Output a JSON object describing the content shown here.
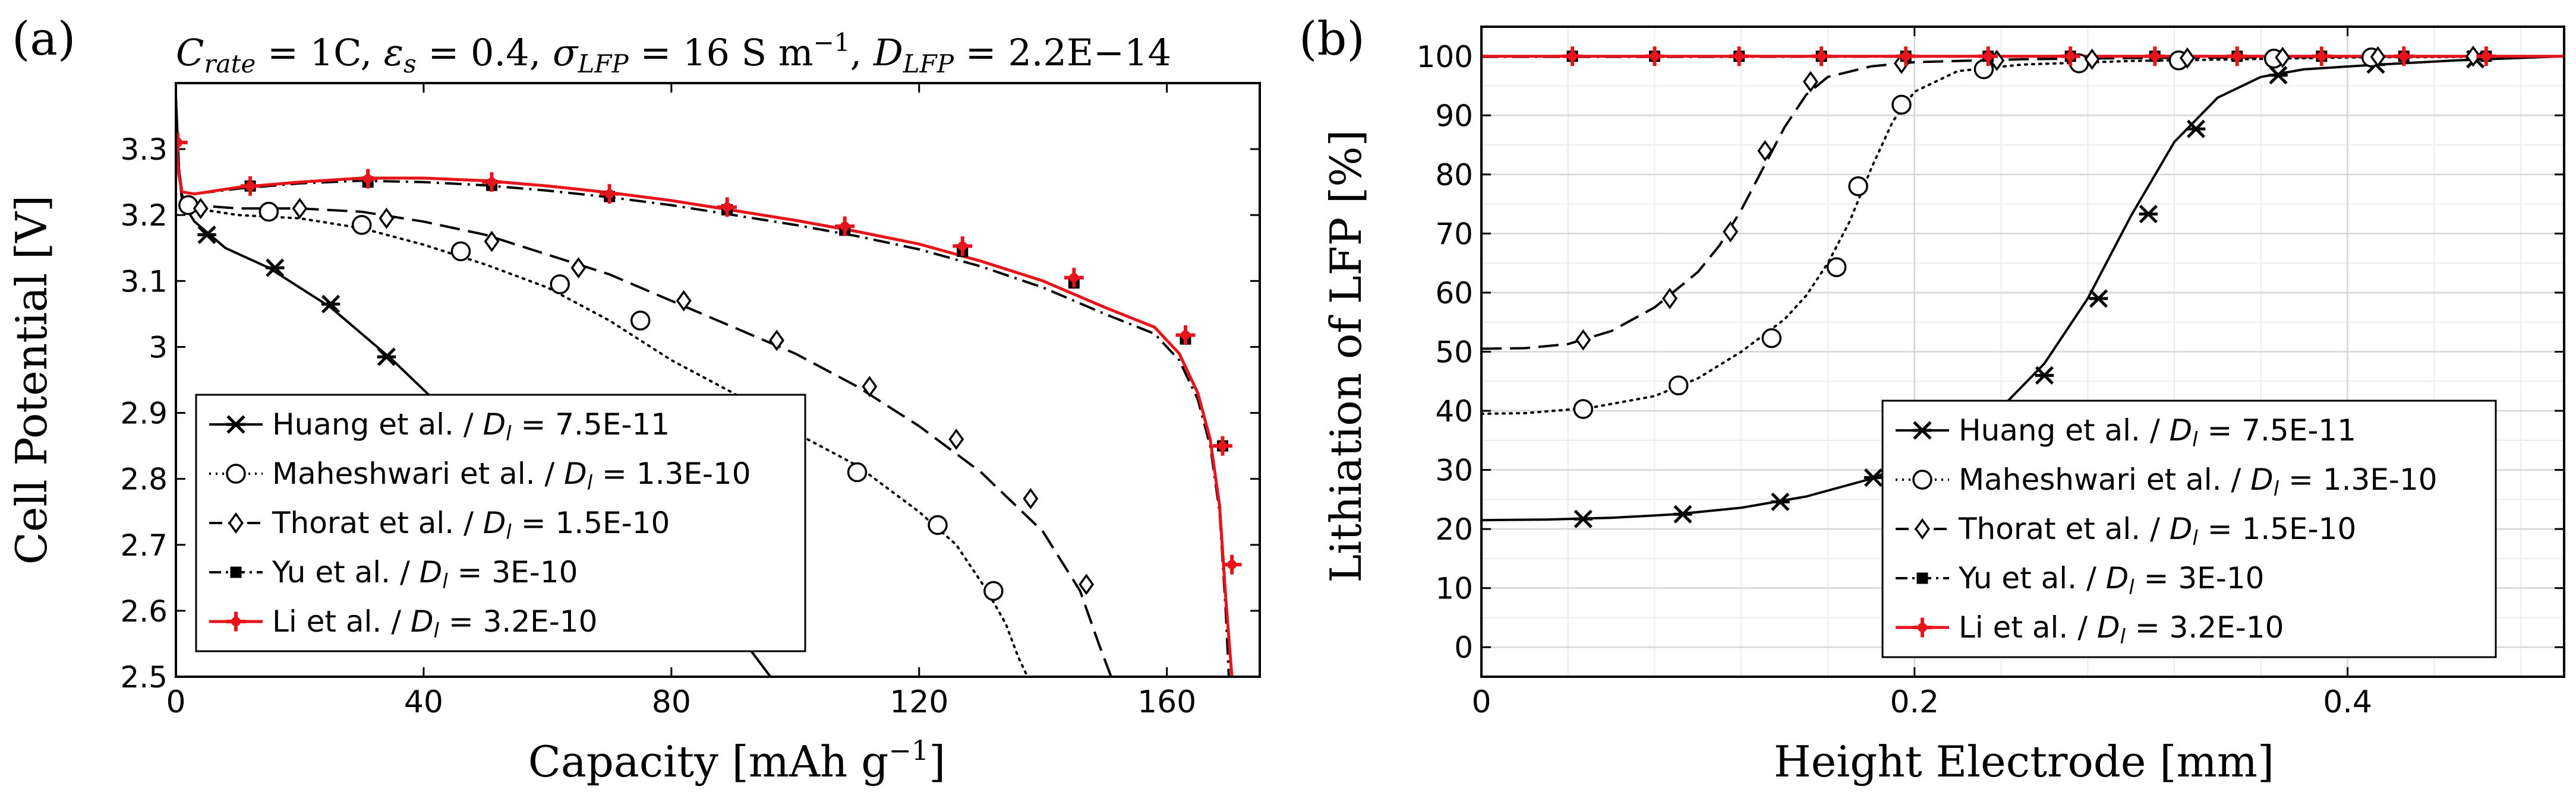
{
  "chart_data": [
    {
      "type": "line",
      "panel_label": "(a)",
      "title_parts": [
        "C",
        "rate",
        " = 1C, ",
        "ε",
        "s",
        " = 0.4, ",
        "σ",
        "LFP",
        " = 16 S m",
        "−1",
        ", ",
        "D",
        "LFP",
        " = 2.2E−14"
      ],
      "xlabel": "Capacity [mAh g",
      "xlabel_sup": "−1",
      "xlabel_end": "]",
      "ylabel": "Cell Potential [V]",
      "xlim": [
        0,
        175
      ],
      "ylim": [
        2.5,
        3.4
      ],
      "xticks": [
        0,
        40,
        80,
        120,
        160
      ],
      "xtick_labels": [
        "0",
        "40",
        "80",
        "120",
        "160"
      ],
      "yticks": [
        2.5,
        2.6,
        2.7,
        2.8,
        2.9,
        3.0,
        3.1,
        3.2,
        3.3
      ],
      "ytick_labels": [
        "2.5",
        "2.6",
        "2.7",
        "2.8",
        "2.9",
        "3",
        "3.1",
        "3.2",
        "3.3"
      ],
      "grid": false,
      "legend_position": "bottom-left",
      "series": [
        {
          "name": "Huang et al. / ",
          "dsym": "D",
          "dsub": "l",
          "dval": " = 7.5E-11",
          "color": "#000000",
          "dash": "solid",
          "marker": "asterisk",
          "x": [
            0,
            0.5,
            1,
            3,
            8,
            15,
            25,
            35,
            45,
            55,
            65,
            75,
            85,
            92,
            96
          ],
          "y": [
            3.38,
            3.27,
            3.22,
            3.19,
            3.15,
            3.12,
            3.06,
            2.98,
            2.89,
            2.81,
            2.74,
            2.68,
            2.61,
            2.55,
            2.5
          ],
          "mx": [
            5,
            16,
            25,
            34
          ],
          "my": [
            3.17,
            3.12,
            3.065,
            2.985
          ]
        },
        {
          "name": "Maheshwari et al. / ",
          "dsym": "D",
          "dsub": "l",
          "dval": " = 1.3E-10",
          "color": "#000000",
          "dash": "dot",
          "marker": "circle",
          "x": [
            0,
            0.5,
            1,
            3,
            10,
            20,
            30,
            40,
            50,
            60,
            70,
            80,
            90,
            100,
            110,
            120,
            126,
            131,
            134,
            136,
            137.5
          ],
          "y": [
            3.35,
            3.26,
            3.23,
            3.21,
            3.2,
            3.195,
            3.18,
            3.155,
            3.125,
            3.09,
            3.04,
            2.98,
            2.93,
            2.87,
            2.82,
            2.75,
            2.7,
            2.63,
            2.58,
            2.53,
            2.5
          ],
          "mx": [
            2,
            15,
            30,
            46,
            62,
            75,
            110,
            123,
            132
          ],
          "my": [
            3.215,
            3.205,
            3.185,
            3.145,
            3.095,
            3.04,
            2.81,
            2.73,
            2.63
          ]
        },
        {
          "name": "Thorat et al. / ",
          "dsym": "D",
          "dsub": "l",
          "dval": " = 1.5E-10",
          "color": "#000000",
          "dash": "dash",
          "marker": "diamond",
          "x": [
            0,
            0.5,
            1,
            3,
            10,
            20,
            30,
            40,
            50,
            60,
            70,
            80,
            90,
            100,
            110,
            120,
            130,
            140,
            146,
            149,
            151
          ],
          "y": [
            3.35,
            3.27,
            3.23,
            3.215,
            3.21,
            3.21,
            3.205,
            3.19,
            3.17,
            3.14,
            3.11,
            3.07,
            3.03,
            2.99,
            2.94,
            2.88,
            2.81,
            2.72,
            2.63,
            2.55,
            2.5
          ],
          "mx": [
            4,
            20,
            34,
            51,
            65,
            82,
            97,
            112,
            126,
            138,
            147
          ],
          "my": [
            3.21,
            3.21,
            3.195,
            3.16,
            3.12,
            3.07,
            3.01,
            2.94,
            2.86,
            2.77,
            2.64
          ]
        },
        {
          "name": "Yu et al. / ",
          "dsym": "D",
          "dsub": "l",
          "dval": " = 3E-10",
          "color": "#000000",
          "dash": "dashdot",
          "marker": "square",
          "x": [
            0,
            0.5,
            1,
            3,
            10,
            20,
            30,
            40,
            50,
            60,
            70,
            80,
            90,
            100,
            110,
            120,
            130,
            140,
            150,
            158,
            162,
            165,
            167,
            168.5,
            169.5,
            170
          ],
          "y": [
            3.35,
            3.27,
            3.235,
            3.232,
            3.24,
            3.248,
            3.252,
            3.25,
            3.245,
            3.237,
            3.227,
            3.215,
            3.2,
            3.185,
            3.168,
            3.148,
            3.122,
            3.09,
            3.05,
            3.02,
            2.98,
            2.92,
            2.85,
            2.75,
            2.6,
            2.5
          ],
          "mx": [
            12,
            31,
            51,
            70,
            89,
            108,
            127,
            145,
            163,
            169
          ],
          "my": [
            3.244,
            3.25,
            3.245,
            3.228,
            3.208,
            3.177,
            3.145,
            3.097,
            3.012,
            2.85
          ]
        },
        {
          "name": "Li et al. /  ",
          "dsym": "D",
          "dsub": "l",
          "dval": " = 3.2E-10",
          "color": "#e8141b",
          "dash": "solid",
          "marker": "plus",
          "x": [
            0,
            0.5,
            1,
            3,
            10,
            20,
            30,
            40,
            50,
            60,
            70,
            80,
            90,
            100,
            110,
            120,
            130,
            140,
            150,
            158,
            162,
            165,
            167,
            168.5,
            169.5,
            170.5
          ],
          "y": [
            3.31,
            3.26,
            3.235,
            3.232,
            3.242,
            3.25,
            3.256,
            3.256,
            3.252,
            3.244,
            3.234,
            3.222,
            3.207,
            3.192,
            3.175,
            3.156,
            3.13,
            3.1,
            3.06,
            3.03,
            2.99,
            2.93,
            2.86,
            2.76,
            2.62,
            2.5
          ],
          "mx": [
            0.3,
            12,
            31,
            51,
            70,
            89,
            108,
            127,
            145,
            163,
            169,
            170.5
          ],
          "my": [
            3.31,
            3.244,
            3.255,
            3.25,
            3.232,
            3.212,
            3.183,
            3.153,
            3.105,
            3.018,
            2.85,
            2.67
          ]
        }
      ]
    },
    {
      "type": "line",
      "panel_label": "(b)",
      "xlabel": "Height Electrode [mm]",
      "ylabel": "Lithiation of LFP [%]",
      "xlim": [
        0,
        0.5
      ],
      "ylim": [
        -5,
        105
      ],
      "xticks": [
        0,
        0.2,
        0.4
      ],
      "xtick_labels": [
        "0",
        "0.2",
        "0.4"
      ],
      "yticks": [
        0,
        10,
        20,
        30,
        40,
        50,
        60,
        70,
        80,
        90,
        100
      ],
      "ytick_labels": [
        "0",
        "10",
        "20",
        "30",
        "40",
        "50",
        "60",
        "70",
        "80",
        "90",
        "100"
      ],
      "minor_xticks": [
        0.04,
        0.08,
        0.12,
        0.16,
        0.24,
        0.28,
        0.32,
        0.36,
        0.44,
        0.48
      ],
      "minor_yticks": [
        -5,
        5,
        15,
        25,
        35,
        45,
        55,
        65,
        75,
        85,
        95,
        105
      ],
      "grid": true,
      "legend_position": "bottom-right",
      "series": [
        {
          "name": "Huang et al. / ",
          "dsym": "D",
          "dsub": "l",
          "dval": " = 7.5E-11",
          "color": "#000000",
          "dash": "solid",
          "marker": "asterisk",
          "x": [
            0,
            0.03,
            0.06,
            0.09,
            0.12,
            0.15,
            0.18,
            0.21,
            0.24,
            0.26,
            0.28,
            0.3,
            0.32,
            0.34,
            0.36,
            0.38,
            0.41,
            0.45,
            0.5
          ],
          "y": [
            21.5,
            21.6,
            21.9,
            22.5,
            23.6,
            25.5,
            28.5,
            33.0,
            40.5,
            48.0,
            59.0,
            73.0,
            85.5,
            93.0,
            96.5,
            97.8,
            98.5,
            99.3,
            100
          ],
          "mx": [
            0.047,
            0.093,
            0.138,
            0.181,
            0.26,
            0.285,
            0.308,
            0.33,
            0.368,
            0.413,
            0.459
          ],
          "my": [
            21.7,
            22.5,
            24.6,
            28.7,
            46.0,
            59.0,
            73.3,
            87.7,
            96.8,
            98.6,
            99.5
          ]
        },
        {
          "name": "Maheshwari et al. / ",
          "dsym": "D",
          "dsub": "l",
          "dval": " = 1.3E-10",
          "color": "#000000",
          "dash": "dot",
          "marker": "circle",
          "x": [
            0,
            0.02,
            0.05,
            0.08,
            0.1,
            0.12,
            0.14,
            0.15,
            0.16,
            0.17,
            0.18,
            0.19,
            0.2,
            0.22,
            0.25,
            0.3,
            0.35,
            0.4,
            0.5
          ],
          "y": [
            39.5,
            39.6,
            40.5,
            42.5,
            45.5,
            50.0,
            55.5,
            59.5,
            65.0,
            72.0,
            81.0,
            89.0,
            94.0,
            97.5,
            98.6,
            99.2,
            99.5,
            99.8,
            100
          ],
          "mx": [
            0.047,
            0.091,
            0.134,
            0.164,
            0.174,
            0.194,
            0.232,
            0.276,
            0.322,
            0.366,
            0.411
          ],
          "my": [
            40.3,
            44.3,
            52.3,
            64.3,
            78.0,
            91.8,
            97.8,
            98.8,
            99.3,
            99.6,
            99.8
          ]
        },
        {
          "name": "Thorat et al. / ",
          "dsym": "D",
          "dsub": "l",
          "dval": " = 1.5E-10",
          "color": "#000000",
          "dash": "dash",
          "marker": "diamond",
          "x": [
            0,
            0.02,
            0.04,
            0.06,
            0.08,
            0.1,
            0.11,
            0.12,
            0.13,
            0.14,
            0.15,
            0.16,
            0.18,
            0.2,
            0.25,
            0.3,
            0.4,
            0.5
          ],
          "y": [
            50.5,
            50.6,
            51.3,
            53.5,
            57.5,
            63.5,
            68.0,
            74.0,
            81.0,
            88.0,
            93.5,
            96.5,
            98.3,
            99.0,
            99.5,
            99.7,
            99.9,
            100
          ],
          "mx": [
            0.047,
            0.087,
            0.115,
            0.131,
            0.152,
            0.194,
            0.238,
            0.282,
            0.326,
            0.37,
            0.414,
            0.458
          ],
          "my": [
            52.0,
            59.0,
            70.3,
            84.0,
            95.7,
            98.8,
            99.3,
            99.5,
            99.7,
            99.8,
            99.9,
            100
          ]
        },
        {
          "name": "Yu et al. / ",
          "dsym": "D",
          "dsub": "l",
          "dval": " = 3E-10",
          "color": "#000000",
          "dash": "dashdot",
          "marker": "square",
          "x": [
            0,
            0.1,
            0.2,
            0.3,
            0.4,
            0.5
          ],
          "y": [
            99.9,
            99.9,
            99.95,
            99.95,
            100,
            100
          ],
          "mx": [
            0.042,
            0.08,
            0.119,
            0.157,
            0.196,
            0.234,
            0.272,
            0.311,
            0.349,
            0.388,
            0.426,
            0.464
          ],
          "my": [
            100,
            100,
            100,
            100,
            100,
            100,
            100,
            100,
            100,
            100,
            100,
            100
          ]
        },
        {
          "name": "Li et al. /  ",
          "dsym": "D",
          "dsub": "l",
          "dval": " = 3.2E-10",
          "color": "#e8141b",
          "dash": "solid",
          "marker": "plus",
          "x": [
            0,
            0.1,
            0.2,
            0.3,
            0.4,
            0.5
          ],
          "y": [
            100,
            100,
            100,
            100,
            100,
            100
          ],
          "mx": [
            0.042,
            0.08,
            0.119,
            0.157,
            0.196,
            0.234,
            0.272,
            0.311,
            0.349,
            0.388,
            0.426,
            0.464
          ],
          "my": [
            100,
            100,
            100,
            100,
            100,
            100,
            100,
            100,
            100,
            100,
            100,
            100
          ]
        }
      ]
    }
  ]
}
